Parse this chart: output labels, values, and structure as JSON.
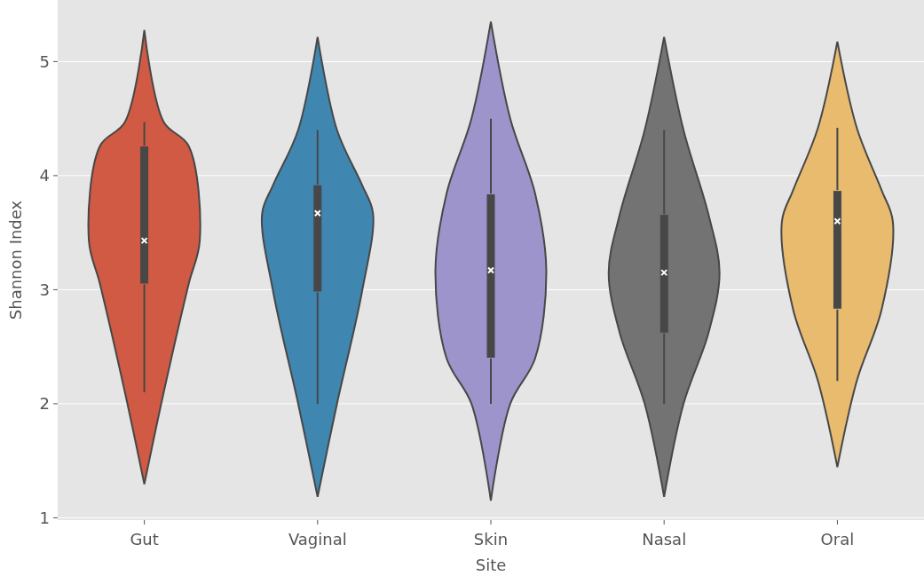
{
  "chart_data": {
    "type": "box",
    "xlabel": "Site",
    "ylabel": "Shannon Index",
    "categories": [
      "Gut",
      "Vaginal",
      "Skin",
      "Nasal",
      "Oral"
    ],
    "colors": [
      "#d05a43",
      "#3f87b1",
      "#9d94cb",
      "#737373",
      "#e8bb6f"
    ],
    "boxes": [
      {
        "low": 2.1,
        "q1": 3.05,
        "median": 3.43,
        "q3": 4.26,
        "high": 4.47
      },
      {
        "low": 2.0,
        "q1": 2.98,
        "median": 3.67,
        "q3": 3.92,
        "high": 4.4
      },
      {
        "low": 2.0,
        "q1": 2.4,
        "median": 3.17,
        "q3": 3.84,
        "high": 4.5
      },
      {
        "low": 2.0,
        "q1": 2.62,
        "median": 3.15,
        "q3": 3.66,
        "high": 4.4
      },
      {
        "low": 2.2,
        "q1": 2.83,
        "median": 3.6,
        "q3": 3.87,
        "high": 4.42
      }
    ],
    "ylim": [
      0.98,
      5.54
    ],
    "yticks": [
      1,
      2,
      3,
      4,
      5
    ],
    "grid": "y"
  }
}
